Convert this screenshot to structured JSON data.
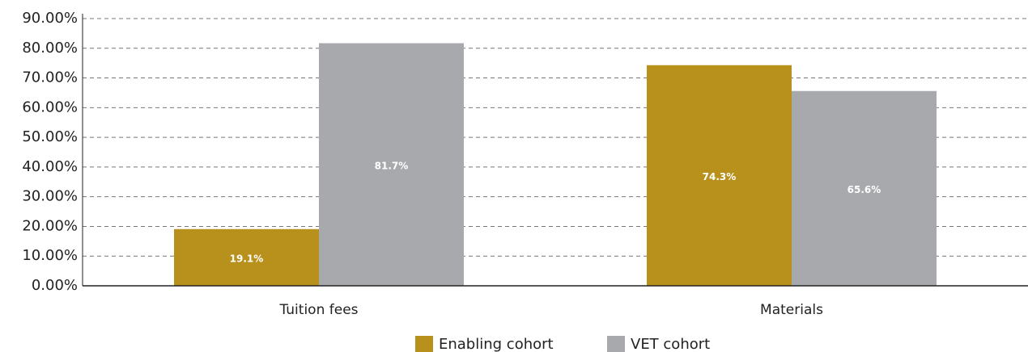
{
  "chart_data": {
    "type": "bar",
    "categories": [
      "Tuition fees",
      "Materials"
    ],
    "series": [
      {
        "name": "Enabling cohort",
        "color": "#b8901c",
        "values": [
          19.1,
          74.3
        ],
        "value_labels": [
          "19.1%",
          "74.3%"
        ]
      },
      {
        "name": "VET cohort",
        "color": "#a7a9ac",
        "values": [
          81.7,
          65.6
        ],
        "value_labels": [
          "81.7%",
          "65.6%"
        ]
      }
    ],
    "ylim": [
      0,
      90
    ],
    "yticks": [
      {
        "value": 0,
        "label": "0.00%"
      },
      {
        "value": 10,
        "label": "10.00%"
      },
      {
        "value": 20,
        "label": "20.00%"
      },
      {
        "value": 30,
        "label": "30.00%"
      },
      {
        "value": 40,
        "label": "40.00%"
      },
      {
        "value": 50,
        "label": "50.00%"
      },
      {
        "value": 60,
        "label": "60.00%"
      },
      {
        "value": 70,
        "label": "70.00%"
      },
      {
        "value": 80,
        "label": "80.00%"
      },
      {
        "value": 90,
        "label": "90.00%"
      }
    ],
    "grid": true,
    "legend": "bottom"
  }
}
